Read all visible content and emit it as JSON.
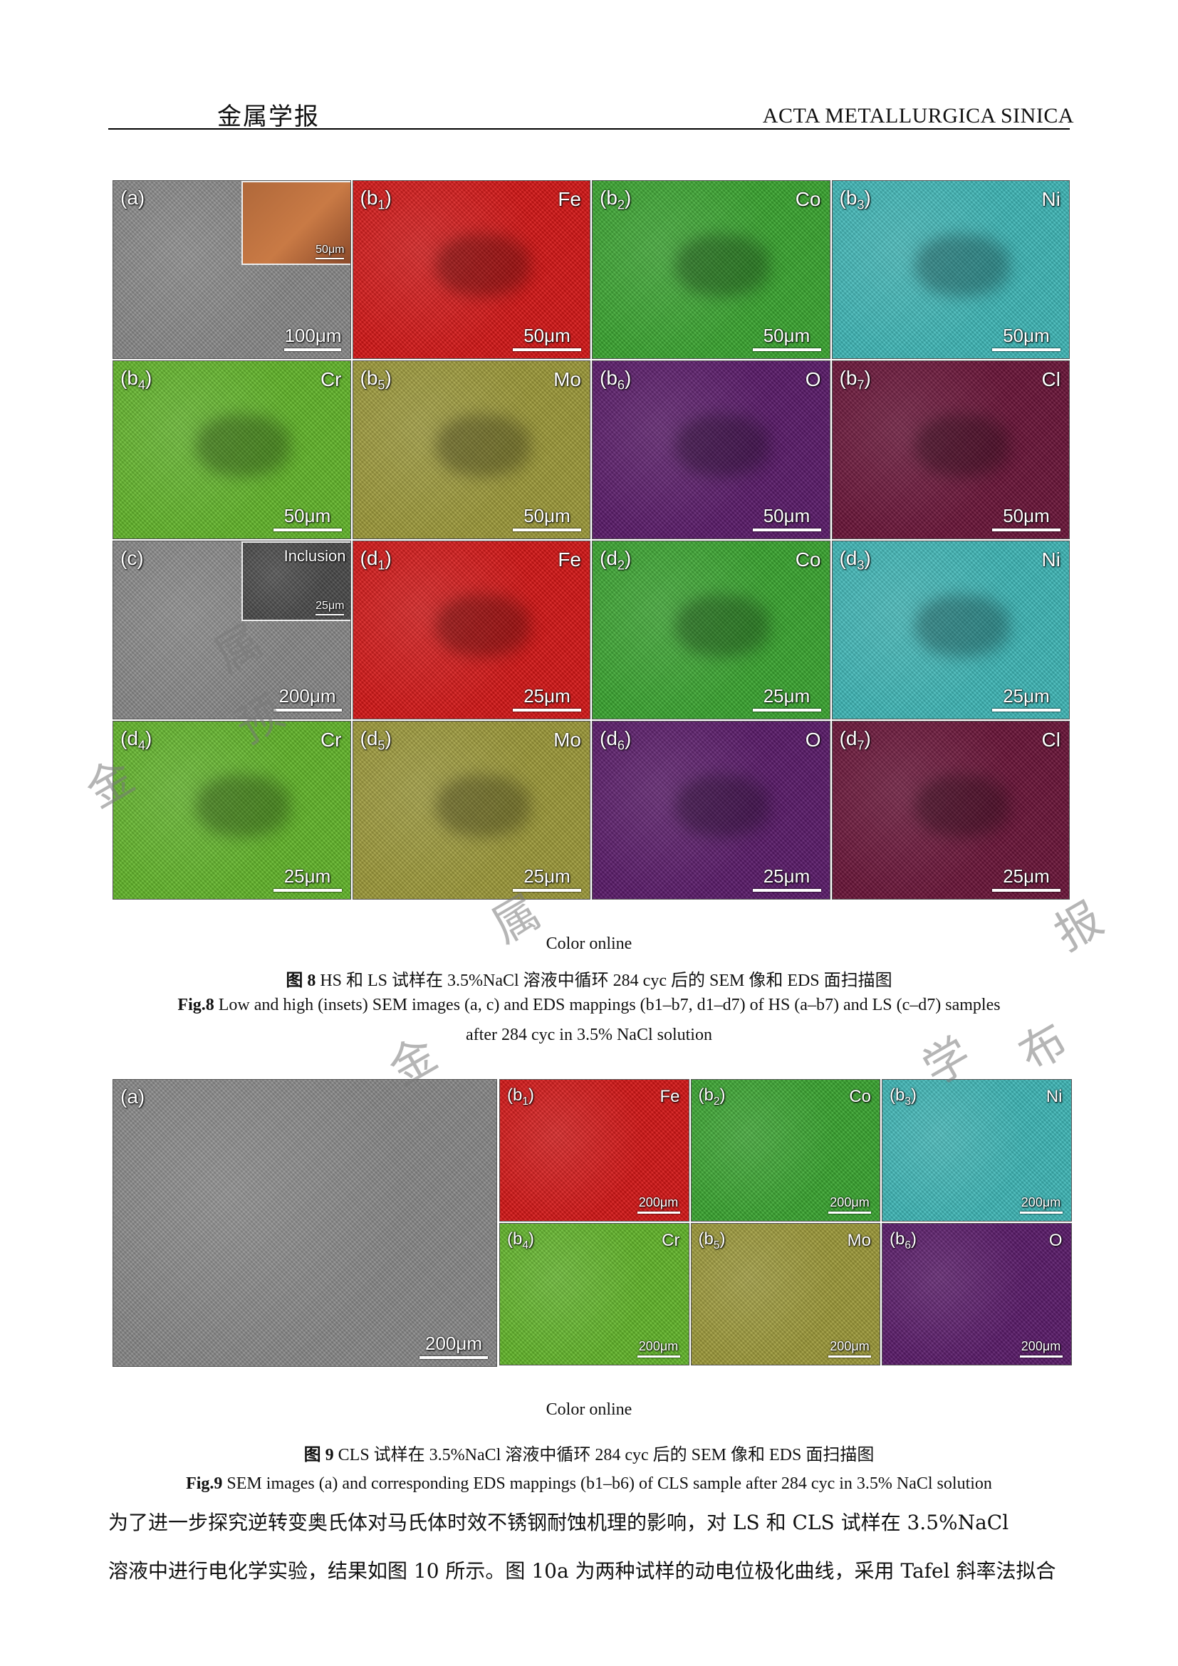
{
  "header": {
    "journal_cn": "金属学报",
    "journal_en": "ACTA METALLURGICA SINICA"
  },
  "colors": {
    "Fe": "#d61616",
    "Co": "#3aa630",
    "Ni": "#3fb8b8",
    "Cr": "#63b72a",
    "Mo": "#9e9a3a",
    "O": "#5a1a6a",
    "Cl": "#6a1438",
    "SEM": "#8a8a8a"
  },
  "fig8": {
    "panels": [
      {
        "label": "(a)",
        "element": "",
        "scale": "100μm",
        "kind": "SEM",
        "inset": {
          "scale": "50μm",
          "text": ""
        }
      },
      {
        "label": "(b1)",
        "element": "Fe",
        "scale": "50μm",
        "kind": "Fe"
      },
      {
        "label": "(b2)",
        "element": "Co",
        "scale": "50μm",
        "kind": "Co"
      },
      {
        "label": "(b3)",
        "element": "Ni",
        "scale": "50μm",
        "kind": "Ni"
      },
      {
        "label": "(b4)",
        "element": "Cr",
        "scale": "50μm",
        "kind": "Cr"
      },
      {
        "label": "(b5)",
        "element": "Mo",
        "scale": "50μm",
        "kind": "Mo"
      },
      {
        "label": "(b6)",
        "element": "O",
        "scale": "50μm",
        "kind": "O"
      },
      {
        "label": "(b7)",
        "element": "Cl",
        "scale": "50μm",
        "kind": "Cl"
      },
      {
        "label": "(c)",
        "element": "",
        "scale": "200μm",
        "kind": "SEM",
        "inset": {
          "scale": "25μm",
          "text": "Inclusion"
        }
      },
      {
        "label": "(d1)",
        "element": "Fe",
        "scale": "25μm",
        "kind": "Fe"
      },
      {
        "label": "(d2)",
        "element": "Co",
        "scale": "25μm",
        "kind": "Co"
      },
      {
        "label": "(d3)",
        "element": "Ni",
        "scale": "25μm",
        "kind": "Ni"
      },
      {
        "label": "(d4)",
        "element": "Cr",
        "scale": "25μm",
        "kind": "Cr"
      },
      {
        "label": "(d5)",
        "element": "Mo",
        "scale": "25μm",
        "kind": "Mo"
      },
      {
        "label": "(d6)",
        "element": "O",
        "scale": "25μm",
        "kind": "O"
      },
      {
        "label": "(d7)",
        "element": "Cl",
        "scale": "25μm",
        "kind": "Cl"
      }
    ],
    "color_online": "Color online",
    "caption_cn_label": "图 8",
    "caption_cn": " HS 和 LS 试样在 3.5%NaCl 溶液中循环 284 cyc 后的 SEM 像和 EDS 面扫描图",
    "caption_en_label": "Fig.8",
    "caption_en_1": " Low and high (insets) SEM images (a, c) and EDS mappings (b1–b7, d1–d7) of HS (a–b7) and LS (c–d7) samples",
    "caption_en_2": "after 284 cyc in 3.5% NaCl solution"
  },
  "fig9": {
    "main": {
      "label": "(a)",
      "scale": "200μm"
    },
    "panels": [
      {
        "label": "(b1)",
        "element": "Fe",
        "scale": "200μm",
        "kind": "Fe"
      },
      {
        "label": "(b2)",
        "element": "Co",
        "scale": "200μm",
        "kind": "Co"
      },
      {
        "label": "(b3)",
        "element": "Ni",
        "scale": "200μm",
        "kind": "Ni"
      },
      {
        "label": "(b4)",
        "element": "Cr",
        "scale": "200μm",
        "kind": "Cr"
      },
      {
        "label": "(b5)",
        "element": "Mo",
        "scale": "200μm",
        "kind": "Mo"
      },
      {
        "label": "(b6)",
        "element": "O",
        "scale": "200μm",
        "kind": "O"
      }
    ],
    "color_online": "Color online",
    "caption_cn_label": "图 9",
    "caption_cn": " CLS 试样在 3.5%NaCl 溶液中循环 284 cyc 后的 SEM 像和 EDS 面扫描图",
    "caption_en_label": "Fig.9",
    "caption_en": " SEM images (a) and corresponding EDS mappings (b1–b6) of CLS sample after 284 cyc in 3.5% NaCl solution"
  },
  "body": {
    "line1": "为了进一步探究逆转变奥氏体对马氏体时效不锈钢耐蚀机理的影响，对 LS 和 CLS 试样在 3.5%NaCl",
    "line2": "溶液中进行电化学实验，结果如图 10 所示。图 10a 为两种试样的动电位极化曲线，采用 Tafel 斜率法拟合"
  },
  "watermark": [
    "金",
    "属",
    "预",
    "属",
    "报",
    "金",
    "学",
    "布"
  ]
}
